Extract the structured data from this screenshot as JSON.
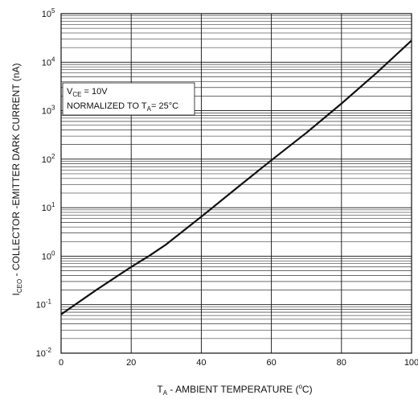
{
  "chart_data": {
    "type": "line",
    "title": "",
    "xlabel": {
      "main": "T",
      "sub": "A",
      "rest": " - AMBIENT TEMPERATURE (",
      "degree": "o",
      "unit": "C)"
    },
    "ylabel": {
      "main": "I",
      "sub": "CEO",
      "rest": "  - COLLECTOR -EMITTER DARK CURRENT (nA)"
    },
    "xlim": [
      0,
      100
    ],
    "ylim": [
      0.01,
      100000
    ],
    "yscale": "log",
    "grid": true,
    "x_ticks": [
      "0",
      "20",
      "40",
      "60",
      "80",
      "100"
    ],
    "y_ticks": [
      {
        "base": "10",
        "exp": "-2"
      },
      {
        "base": "10",
        "exp": "-1"
      },
      {
        "base": "10",
        "exp": "0"
      },
      {
        "base": "10",
        "exp": "1"
      },
      {
        "base": "10",
        "exp": "2"
      },
      {
        "base": "10",
        "exp": "3"
      },
      {
        "base": "10",
        "exp": "4"
      },
      {
        "base": "10",
        "exp": "5"
      }
    ],
    "annotation": {
      "line1_main": "V",
      "line1_sub": "CE",
      "line1_rest": " = 10V",
      "line2_main": "NORMALIZED TO T",
      "line2_sub": "A",
      "line2_rest": "= 25°C"
    },
    "series": [
      {
        "color": "#111111",
        "x": [
          0,
          10,
          20,
          25,
          30,
          40,
          50,
          60,
          70,
          80,
          90,
          100
        ],
        "y": [
          0.063,
          0.2,
          0.6,
          1.0,
          1.75,
          6.5,
          25,
          95,
          350,
          1400,
          6000,
          28000
        ]
      }
    ]
  }
}
